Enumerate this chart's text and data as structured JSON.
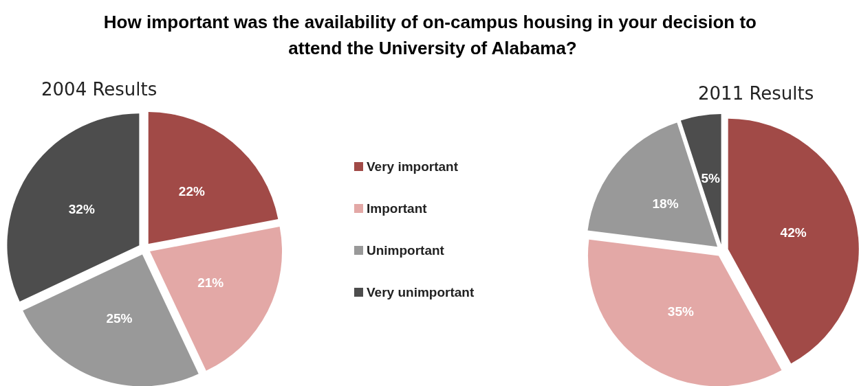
{
  "chart_data": {
    "type": "pie",
    "title": "How important was the availability of on-campus housing in your decision to attend the University of Alabama?",
    "categories": [
      "Very important",
      "Important",
      "Unimportant",
      "Very unimportant"
    ],
    "colors": [
      "#a14a47",
      "#e3a8a6",
      "#999999",
      "#4d4d4d"
    ],
    "series": [
      {
        "name": "2004 Results",
        "values": [
          22,
          21,
          25,
          32
        ],
        "value_labels": [
          "22%",
          "21%",
          "25%",
          "32%"
        ]
      },
      {
        "name": "2011 Results",
        "values": [
          42,
          35,
          18,
          5
        ],
        "value_labels": [
          "42%",
          "35%",
          "18%",
          "5%"
        ]
      }
    ],
    "legend": "center"
  }
}
